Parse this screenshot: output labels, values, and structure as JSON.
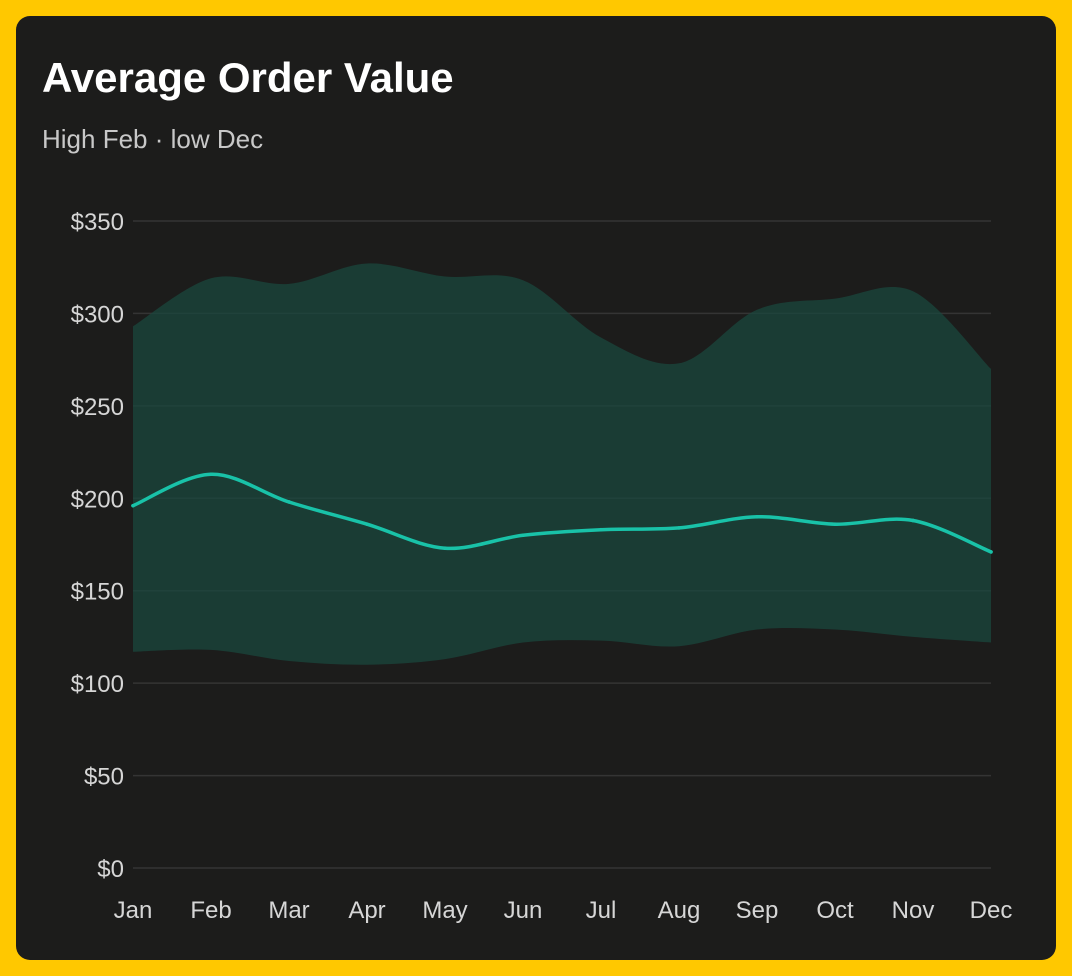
{
  "colors": {
    "frame": "#ffc800",
    "card": "#1c1c1b",
    "line": "#19c2a8",
    "band": "#19473d",
    "grid": "#343434",
    "text": "#ffffff",
    "subtext": "#c8c8c8"
  },
  "chart_data": {
    "type": "line",
    "title": "Average Order Value",
    "subtitle": "High Feb · low Dec",
    "xlabel": "",
    "ylabel": "",
    "categories": [
      "Jan",
      "Feb",
      "Mar",
      "Apr",
      "May",
      "Jun",
      "Jul",
      "Aug",
      "Sep",
      "Oct",
      "Nov",
      "Dec"
    ],
    "yticks": [
      "$0",
      "$50",
      "$100",
      "$150",
      "$200",
      "$250",
      "$300",
      "$350"
    ],
    "ylim": [
      0,
      350
    ],
    "grid": true,
    "legend": "none",
    "series": [
      {
        "values": [
          196,
          213,
          198,
          186,
          173,
          180,
          183,
          184,
          190,
          186,
          188,
          171
        ]
      }
    ],
    "band": {
      "upper": [
        293,
        319,
        316,
        327,
        320,
        318,
        287,
        273,
        302,
        308,
        312,
        270
      ],
      "lower": [
        117,
        118,
        112,
        110,
        113,
        122,
        123,
        120,
        129,
        129,
        125,
        122
      ]
    }
  }
}
